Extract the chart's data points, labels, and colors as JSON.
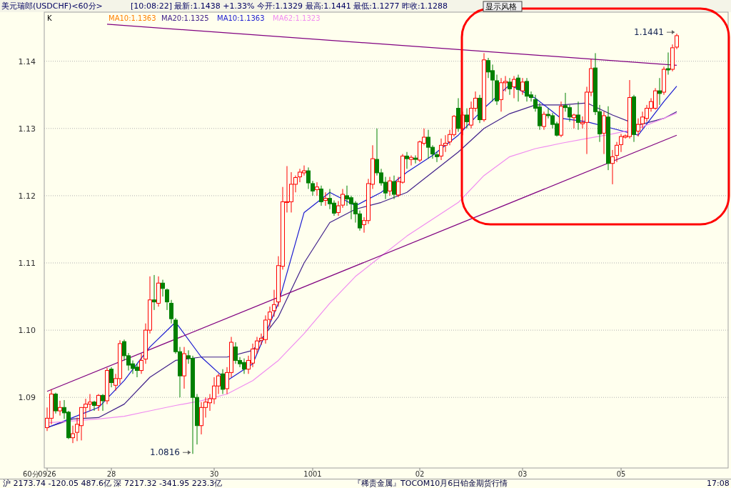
{
  "chart_data": {
    "type": "candlestick",
    "title": "美元瑞郎(USDCHF)<60分>",
    "subtitle": "[10:08:22]  最新:1.1438 +1.33%  今开:1.1329  最高:1.1441  最低:1.1277  昨收:1.1288",
    "categories": [
      "0926",
      null,
      null,
      null,
      null,
      null,
      null,
      null,
      null,
      null,
      null,
      null,
      null,
      null,
      null,
      "28",
      null,
      null,
      null,
      null,
      null,
      null,
      null,
      null,
      null,
      null,
      null,
      null,
      null,
      null,
      null,
      null,
      null,
      null,
      null,
      null,
      null,
      null,
      null,
      "30",
      null,
      null,
      null,
      null,
      null,
      null,
      null,
      null,
      null,
      null,
      null,
      null,
      null,
      null,
      null,
      null,
      null,
      null,
      null,
      null,
      null,
      null,
      "1001",
      null,
      null,
      null,
      null,
      null,
      null,
      null,
      null,
      null,
      null,
      null,
      null,
      null,
      null,
      null,
      null,
      null,
      null,
      null,
      null,
      null,
      null,
      null,
      null,
      "02",
      null,
      null,
      null,
      null,
      null,
      null,
      null,
      null,
      null,
      null,
      null,
      null,
      null,
      null,
      null,
      null,
      null,
      null,
      null,
      null,
      null,
      null,
      null,
      "03",
      null,
      null,
      null,
      null,
      null,
      null,
      null,
      null,
      null,
      null,
      null,
      null,
      null,
      null,
      null,
      null,
      null,
      null,
      null,
      null,
      null,
      null,
      "05",
      null,
      null,
      null,
      null,
      null,
      null,
      null,
      null,
      null,
      null,
      null,
      null,
      null
    ],
    "ohlc": [
      [
        1.0855,
        1.0885,
        1.085,
        1.0869
      ],
      [
        1.0869,
        1.0912,
        1.086,
        1.0905
      ],
      [
        1.0905,
        1.0907,
        1.0876,
        1.088
      ],
      [
        1.088,
        1.0895,
        1.0873,
        1.0885
      ],
      [
        1.0885,
        1.0896,
        1.0868,
        1.0877
      ],
      [
        1.0878,
        1.088,
        1.0838,
        1.084
      ],
      [
        1.084,
        1.0858,
        1.0832,
        1.0846
      ],
      [
        1.0848,
        1.087,
        1.0835,
        1.086
      ],
      [
        1.0858,
        1.0885,
        1.0836,
        1.0885
      ],
      [
        1.0885,
        1.0898,
        1.087,
        1.089
      ],
      [
        1.089,
        1.0905,
        1.088,
        1.0893
      ],
      [
        1.0893,
        1.0895,
        1.088,
        1.0888
      ],
      [
        1.0888,
        1.0905,
        1.088,
        1.0903
      ],
      [
        1.0903,
        1.0905,
        1.088,
        1.0895
      ],
      [
        1.0895,
        1.0944,
        1.089,
        1.094
      ],
      [
        1.0942,
        1.0945,
        1.0915,
        1.0922
      ],
      [
        1.0918,
        1.0935,
        1.091,
        1.0928
      ],
      [
        1.0928,
        1.0985,
        1.092,
        1.098
      ],
      [
        1.0983,
        1.0986,
        1.0955,
        1.0962
      ],
      [
        1.0962,
        1.0966,
        1.094,
        1.0948
      ],
      [
        1.095,
        1.0955,
        1.0935,
        1.0943
      ],
      [
        1.0945,
        1.095,
        1.093,
        1.094
      ],
      [
        1.094,
        1.0965,
        1.0935,
        1.0955
      ],
      [
        1.0957,
        1.101,
        1.095,
        1.1
      ],
      [
        1.1,
        1.108,
        1.0995,
        1.1045
      ],
      [
        1.1045,
        1.1082,
        1.103,
        1.1042
      ],
      [
        1.104,
        1.108,
        1.1035,
        1.107
      ],
      [
        1.107,
        1.1075,
        1.105,
        1.1062
      ],
      [
        1.106,
        1.1062,
        1.103,
        1.1042
      ],
      [
        1.104,
        1.1045,
        1.101,
        1.1017
      ],
      [
        1.1015,
        1.1018,
        1.0965,
        1.0968
      ],
      [
        1.0968,
        1.0975,
        1.09,
        1.0932
      ],
      [
        1.0932,
        1.0975,
        1.0913,
        1.0965
      ],
      [
        1.0962,
        1.097,
        1.095,
        1.0958
      ],
      [
        1.0958,
        1.0962,
        1.0816,
        1.09
      ],
      [
        1.09,
        1.0905,
        1.083,
        1.0858
      ],
      [
        1.0858,
        1.0893,
        1.0845,
        1.0885
      ],
      [
        1.0885,
        1.09,
        1.087,
        1.0893
      ],
      [
        1.0892,
        1.0905,
        1.088,
        1.0898
      ],
      [
        1.0898,
        1.093,
        1.089,
        1.0917
      ],
      [
        1.0917,
        1.0935,
        1.0905,
        1.0932
      ],
      [
        1.0935,
        1.0942,
        1.0905,
        1.0912
      ],
      [
        1.0913,
        1.0945,
        1.0905,
        1.0937
      ],
      [
        1.0937,
        1.099,
        1.093,
        1.0982
      ],
      [
        1.0975,
        1.0982,
        1.095,
        1.0955
      ],
      [
        1.0955,
        1.096,
        1.0945,
        1.095
      ],
      [
        1.0952,
        1.0958,
        1.0935,
        1.0942
      ],
      [
        1.0942,
        1.0962,
        1.0935,
        1.0955
      ],
      [
        1.0951,
        1.098,
        1.0945,
        1.0972
      ],
      [
        1.0972,
        1.099,
        1.0965,
        1.0984
      ],
      [
        1.0985,
        1.0995,
        1.0978,
        1.0988
      ],
      [
        1.0986,
        1.1022,
        1.098,
        1.1015
      ],
      [
        1.1016,
        1.1035,
        1.1005,
        1.1027
      ],
      [
        1.1029,
        1.106,
        1.102,
        1.1038
      ],
      [
        1.1042,
        1.111,
        1.1035,
        1.1096
      ],
      [
        1.1095,
        1.1213,
        1.109,
        1.1191
      ],
      [
        1.119,
        1.1244,
        1.1175,
        1.1191
      ],
      [
        1.1191,
        1.1235,
        1.1175,
        1.1217
      ],
      [
        1.1217,
        1.123,
        1.1205,
        1.1227
      ],
      [
        1.1228,
        1.124,
        1.122,
        1.1235
      ],
      [
        1.1234,
        1.1245,
        1.123,
        1.1237
      ],
      [
        1.1237,
        1.1242,
        1.121,
        1.1219
      ],
      [
        1.1218,
        1.1222,
        1.12,
        1.1207
      ],
      [
        1.1209,
        1.122,
        1.12,
        1.1213
      ],
      [
        1.121,
        1.1215,
        1.1185,
        1.1191
      ],
      [
        1.1193,
        1.1205,
        1.1185,
        1.1196
      ],
      [
        1.1196,
        1.121,
        1.118,
        1.1188
      ],
      [
        1.1189,
        1.1193,
        1.117,
        1.1174
      ],
      [
        1.1175,
        1.1192,
        1.117,
        1.1185
      ],
      [
        1.1186,
        1.121,
        1.1182,
        1.1202
      ],
      [
        1.12,
        1.1215,
        1.1185,
        1.1195
      ],
      [
        1.1197,
        1.12,
        1.1165,
        1.1188
      ],
      [
        1.1189,
        1.1192,
        1.116,
        1.1173
      ],
      [
        1.1173,
        1.1178,
        1.1148,
        1.1152
      ],
      [
        1.1157,
        1.1168,
        1.1145,
        1.1163
      ],
      [
        1.1163,
        1.1225,
        1.1158,
        1.1218
      ],
      [
        1.1217,
        1.1275,
        1.121,
        1.1255
      ],
      [
        1.1254,
        1.13,
        1.123,
        1.1234
      ],
      [
        1.1234,
        1.124,
        1.1215,
        1.1219
      ],
      [
        1.122,
        1.1228,
        1.1195,
        1.1204
      ],
      [
        1.1207,
        1.1228,
        1.12,
        1.1222
      ],
      [
        1.1221,
        1.123,
        1.1195,
        1.1202
      ],
      [
        1.1201,
        1.1228,
        1.1198,
        1.1221
      ],
      [
        1.122,
        1.1262,
        1.1218,
        1.1259
      ],
      [
        1.1259,
        1.1265,
        1.124,
        1.1255
      ],
      [
        1.1254,
        1.126,
        1.1245,
        1.1257
      ],
      [
        1.1256,
        1.126,
        1.1248,
        1.1254
      ],
      [
        1.1253,
        1.1282,
        1.125,
        1.128
      ],
      [
        1.1278,
        1.13,
        1.1275,
        1.1287
      ],
      [
        1.1287,
        1.1298,
        1.1255,
        1.1272
      ],
      [
        1.1272,
        1.1275,
        1.1255,
        1.1262
      ],
      [
        1.1261,
        1.1265,
        1.125,
        1.1258
      ],
      [
        1.1259,
        1.1285,
        1.1253,
        1.1275
      ],
      [
        1.1275,
        1.129,
        1.1265,
        1.1278
      ],
      [
        1.128,
        1.1298,
        1.1275,
        1.1291
      ],
      [
        1.1291,
        1.132,
        1.1288,
        1.1318
      ],
      [
        1.133,
        1.1345,
        1.1295,
        1.13
      ],
      [
        1.13,
        1.1325,
        1.129,
        1.132
      ],
      [
        1.132,
        1.133,
        1.13,
        1.131
      ],
      [
        1.1305,
        1.134,
        1.13,
        1.133
      ],
      [
        1.133,
        1.1355,
        1.1325,
        1.1345
      ],
      [
        1.1345,
        1.135,
        1.1308,
        1.1313
      ],
      [
        1.1313,
        1.1412,
        1.131,
        1.1402
      ],
      [
        1.1401,
        1.1405,
        1.1375,
        1.1384
      ],
      [
        1.1386,
        1.1395,
        1.134,
        1.1372
      ],
      [
        1.1371,
        1.138,
        1.1335,
        1.1341
      ],
      [
        1.1343,
        1.1375,
        1.1325,
        1.1368
      ],
      [
        1.1368,
        1.1378,
        1.1355,
        1.137
      ],
      [
        1.1369,
        1.1375,
        1.135,
        1.1359
      ],
      [
        1.1362,
        1.1378,
        1.1345,
        1.1373
      ],
      [
        1.1375,
        1.138,
        1.134,
        1.1358
      ],
      [
        1.1356,
        1.1375,
        1.135,
        1.1369
      ],
      [
        1.137,
        1.1375,
        1.134,
        1.1348
      ],
      [
        1.135,
        1.1355,
        1.134,
        1.1346
      ],
      [
        1.1343,
        1.135,
        1.1325,
        1.133
      ],
      [
        1.1332,
        1.1338,
        1.1298,
        1.1304
      ],
      [
        1.1303,
        1.1325,
        1.1298,
        1.1321
      ],
      [
        1.1321,
        1.133,
        1.1315,
        1.1319
      ],
      [
        1.1319,
        1.1323,
        1.13,
        1.1306
      ],
      [
        1.1307,
        1.131,
        1.1288,
        1.129
      ],
      [
        1.129,
        1.134,
        1.1287,
        1.1333
      ],
      [
        1.1334,
        1.1353,
        1.1325,
        1.1331
      ],
      [
        1.1331,
        1.1335,
        1.131,
        1.1317
      ],
      [
        1.1316,
        1.1322,
        1.13,
        1.132
      ],
      [
        1.132,
        1.134,
        1.1298,
        1.1309
      ],
      [
        1.1307,
        1.1318,
        1.13,
        1.1309
      ],
      [
        1.1309,
        1.1362,
        1.1262,
        1.1354
      ],
      [
        1.1354,
        1.1403,
        1.1348,
        1.1389
      ],
      [
        1.139,
        1.1412,
        1.132,
        1.1325
      ],
      [
        1.1325,
        1.1335,
        1.128,
        1.1292
      ],
      [
        1.1293,
        1.1325,
        1.1262,
        1.1319
      ],
      [
        1.1317,
        1.1333,
        1.1238,
        1.1248
      ],
      [
        1.1248,
        1.1268,
        1.1217,
        1.1258
      ],
      [
        1.126,
        1.128,
        1.125,
        1.1275
      ],
      [
        1.1276,
        1.1292,
        1.1265,
        1.1288
      ],
      [
        1.1287,
        1.1291,
        1.1285,
        1.1289
      ],
      [
        1.1288,
        1.1372,
        1.1285,
        1.1346
      ],
      [
        1.1347,
        1.135,
        1.128,
        1.1291
      ],
      [
        1.1296,
        1.1315,
        1.1288,
        1.1306
      ],
      [
        1.1307,
        1.1325,
        1.13,
        1.1317
      ],
      [
        1.1315,
        1.1335,
        1.131,
        1.133
      ],
      [
        1.133,
        1.1345,
        1.1325,
        1.134
      ],
      [
        1.133,
        1.136,
        1.1328,
        1.1356
      ],
      [
        1.1356,
        1.1375,
        1.1335,
        1.1352
      ],
      [
        1.1354,
        1.1392,
        1.135,
        1.1388
      ],
      [
        1.1389,
        1.1413,
        1.138,
        1.1387
      ],
      [
        1.1388,
        1.1425,
        1.1385,
        1.142
      ],
      [
        1.1421,
        1.1441,
        1.1418,
        1.1438
      ]
    ],
    "series": [
      {
        "type": "line",
        "name": "MA20:1.1325",
        "color": "#40208a",
        "values": [
          1.0855,
          null,
          null,
          null,
          null,
          null,
          1.0868,
          null,
          null,
          null,
          null,
          null,
          1.087,
          null,
          null,
          null,
          null,
          null,
          1.089,
          null,
          null,
          null,
          null,
          null,
          1.093,
          null,
          null,
          null,
          null,
          null,
          1.0955,
          null,
          null,
          null,
          null,
          null,
          1.096,
          null,
          null,
          null,
          null,
          null,
          1.096,
          null,
          null,
          null,
          null,
          null,
          1.097,
          null,
          null,
          null,
          null,
          null,
          1.102,
          null,
          null,
          null,
          null,
          null,
          1.11,
          null,
          null,
          null,
          null,
          null,
          1.116,
          null,
          null,
          null,
          null,
          null,
          1.118,
          null,
          null,
          null,
          null,
          null,
          1.119,
          null,
          null,
          null,
          null,
          null,
          1.1205,
          null,
          null,
          null,
          null,
          null,
          1.1235,
          null,
          null,
          null,
          null,
          null,
          1.1265,
          null,
          null,
          null,
          null,
          null,
          1.13,
          null,
          null,
          null,
          null,
          null,
          1.1322,
          null,
          null,
          null,
          null,
          null,
          1.1335,
          null,
          null,
          null,
          null,
          null,
          1.1335,
          null,
          null,
          null,
          null,
          null,
          1.1338,
          null,
          null,
          null,
          null,
          null,
          1.132,
          null,
          null,
          null,
          null,
          null,
          1.1305,
          null,
          null,
          null,
          null,
          null,
          1.1315,
          null,
          null,
          1.1325
        ]
      },
      {
        "type": "line",
        "name": "MA10:1.1363",
        "color": "#1a1ad0",
        "values": [
          1.0855,
          null,
          null,
          null,
          null,
          null,
          1.087,
          null,
          null,
          null,
          null,
          null,
          1.0885,
          null,
          null,
          null,
          null,
          null,
          1.0925,
          null,
          null,
          null,
          null,
          null,
          1.0975,
          null,
          null,
          null,
          null,
          null,
          1.1012,
          null,
          null,
          null,
          null,
          null,
          1.096,
          null,
          null,
          null,
          null,
          null,
          1.0925,
          null,
          null,
          null,
          null,
          null,
          1.095,
          null,
          null,
          null,
          null,
          null,
          1.104,
          null,
          null,
          null,
          null,
          null,
          1.1175,
          null,
          null,
          null,
          null,
          null,
          1.1205,
          null,
          null,
          null,
          null,
          null,
          1.1185,
          null,
          null,
          null,
          null,
          null,
          1.1205,
          null,
          null,
          null,
          null,
          null,
          1.1235,
          null,
          null,
          null,
          null,
          null,
          1.126,
          null,
          null,
          null,
          null,
          null,
          1.129,
          null,
          null,
          null,
          null,
          null,
          1.133,
          null,
          null,
          null,
          null,
          null,
          1.1365,
          null,
          null,
          null,
          null,
          null,
          1.1345,
          null,
          null,
          null,
          null,
          null,
          1.1315,
          null,
          null,
          null,
          null,
          null,
          1.131,
          null,
          null,
          null,
          null,
          null,
          1.13,
          null,
          null,
          null,
          null,
          null,
          1.129,
          null,
          null,
          null,
          null,
          null,
          1.134,
          null,
          null,
          1.1363
        ]
      },
      {
        "type": "line",
        "name": "MA62:1.1323",
        "color": "#f08cf0",
        "values": [
          1.0862,
          null,
          null,
          null,
          null,
          null,
          1.0865,
          null,
          null,
          null,
          null,
          null,
          1.0868,
          null,
          null,
          null,
          null,
          null,
          1.0872,
          null,
          null,
          null,
          null,
          null,
          1.088,
          null,
          null,
          null,
          null,
          null,
          1.0888,
          null,
          null,
          null,
          null,
          null,
          1.0895,
          null,
          null,
          null,
          null,
          null,
          1.0905,
          null,
          null,
          null,
          null,
          null,
          1.0925,
          null,
          null,
          null,
          null,
          null,
          1.0955,
          null,
          null,
          null,
          null,
          null,
          1.0995,
          null,
          null,
          null,
          null,
          null,
          1.104,
          null,
          null,
          null,
          null,
          null,
          1.108,
          null,
          null,
          null,
          null,
          null,
          1.111,
          null,
          null,
          null,
          null,
          null,
          1.114,
          null,
          null,
          null,
          null,
          null,
          1.1165,
          null,
          null,
          null,
          null,
          null,
          1.119,
          null,
          null,
          null,
          null,
          null,
          1.123,
          null,
          null,
          null,
          null,
          null,
          1.1258,
          null,
          null,
          null,
          null,
          null,
          1.127,
          null,
          null,
          null,
          null,
          null,
          1.1278,
          null,
          null,
          null,
          null,
          null,
          1.1285,
          null,
          null,
          null,
          null,
          null,
          1.1292,
          null,
          null,
          null,
          null,
          null,
          1.13,
          null,
          null,
          null,
          null,
          null,
          1.1315,
          null,
          null,
          1.1323
        ]
      },
      {
        "type": "line",
        "color": "#800080",
        "values": [
          1.0909,
          null,
          null,
          null,
          null,
          null,
          null,
          null,
          null,
          null,
          null,
          null,
          null,
          null,
          null,
          null,
          null,
          null,
          null,
          null,
          null,
          null,
          null,
          null,
          null,
          null,
          null,
          null,
          null,
          null,
          null,
          null,
          null,
          null,
          null,
          null,
          null,
          null,
          null,
          null,
          null,
          null,
          null,
          null,
          null,
          null,
          null,
          null,
          null,
          null,
          null,
          null,
          null,
          null,
          null,
          null,
          null,
          null,
          null,
          null,
          null,
          null,
          null,
          null,
          null,
          null,
          null,
          null,
          null,
          null,
          null,
          null,
          null,
          null,
          null,
          null,
          null,
          null,
          null,
          null,
          null,
          null,
          null,
          null,
          null,
          null,
          null,
          null,
          null,
          null,
          null,
          null,
          null,
          null,
          null,
          null,
          null,
          null,
          null,
          null,
          null,
          null,
          null,
          null,
          null,
          null,
          null,
          null,
          null,
          null,
          null,
          null,
          null,
          null,
          null,
          null,
          null,
          null,
          null,
          null,
          null,
          null,
          null,
          null,
          null,
          null,
          null,
          null,
          null,
          null,
          null,
          null,
          null,
          null,
          null,
          null,
          null,
          null,
          null,
          null,
          null,
          null,
          null,
          null,
          null,
          null,
          null,
          1.129
        ]
      },
      {
        "type": "line",
        "color": "#800080",
        "values": [
          null,
          null,
          null,
          null,
          null,
          null,
          null,
          null,
          null,
          null,
          null,
          null,
          null,
          null,
          1.1455,
          null,
          null,
          null,
          null,
          null,
          null,
          null,
          null,
          null,
          null,
          null,
          null,
          null,
          null,
          null,
          null,
          null,
          null,
          null,
          null,
          null,
          null,
          null,
          null,
          null,
          null,
          null,
          null,
          null,
          null,
          null,
          null,
          null,
          null,
          null,
          null,
          null,
          null,
          null,
          null,
          null,
          null,
          null,
          null,
          null,
          null,
          null,
          null,
          null,
          null,
          null,
          null,
          null,
          null,
          null,
          null,
          null,
          null,
          null,
          null,
          null,
          null,
          null,
          null,
          null,
          null,
          null,
          null,
          null,
          null,
          null,
          null,
          null,
          null,
          null,
          null,
          null,
          null,
          null,
          null,
          null,
          null,
          null,
          null,
          null,
          null,
          null,
          null,
          null,
          null,
          null,
          null,
          null,
          null,
          null,
          null,
          null,
          null,
          null,
          null,
          null,
          null,
          null,
          null,
          null,
          null,
          null,
          null,
          null,
          null,
          null,
          null,
          null,
          null,
          null,
          null,
          null,
          null,
          null,
          null,
          null,
          null,
          null,
          null,
          null,
          null,
          null,
          null,
          null,
          null,
          null,
          null,
          1.1394
        ]
      }
    ],
    "ylim": [
      1.0795,
      1.1473
    ],
    "yticks": [
      1.09,
      {
        "value": 1.1,
        "label": "1.10"
      },
      1.11,
      1.12,
      1.13,
      1.14
    ],
    "grid": "y",
    "legend": "top left",
    "xlabel": "60分",
    "annotations": [
      "1.1441",
      "1.0816",
      "显示风格",
      "沪 2173.74 -120.05 487.6亿  深 7217.32 -341.95 223.3亿",
      "『稀贵金属』TOCOM10月6日铂金期货行情",
      "17:08",
      "K",
      "MA10:1.1363"
    ]
  }
}
